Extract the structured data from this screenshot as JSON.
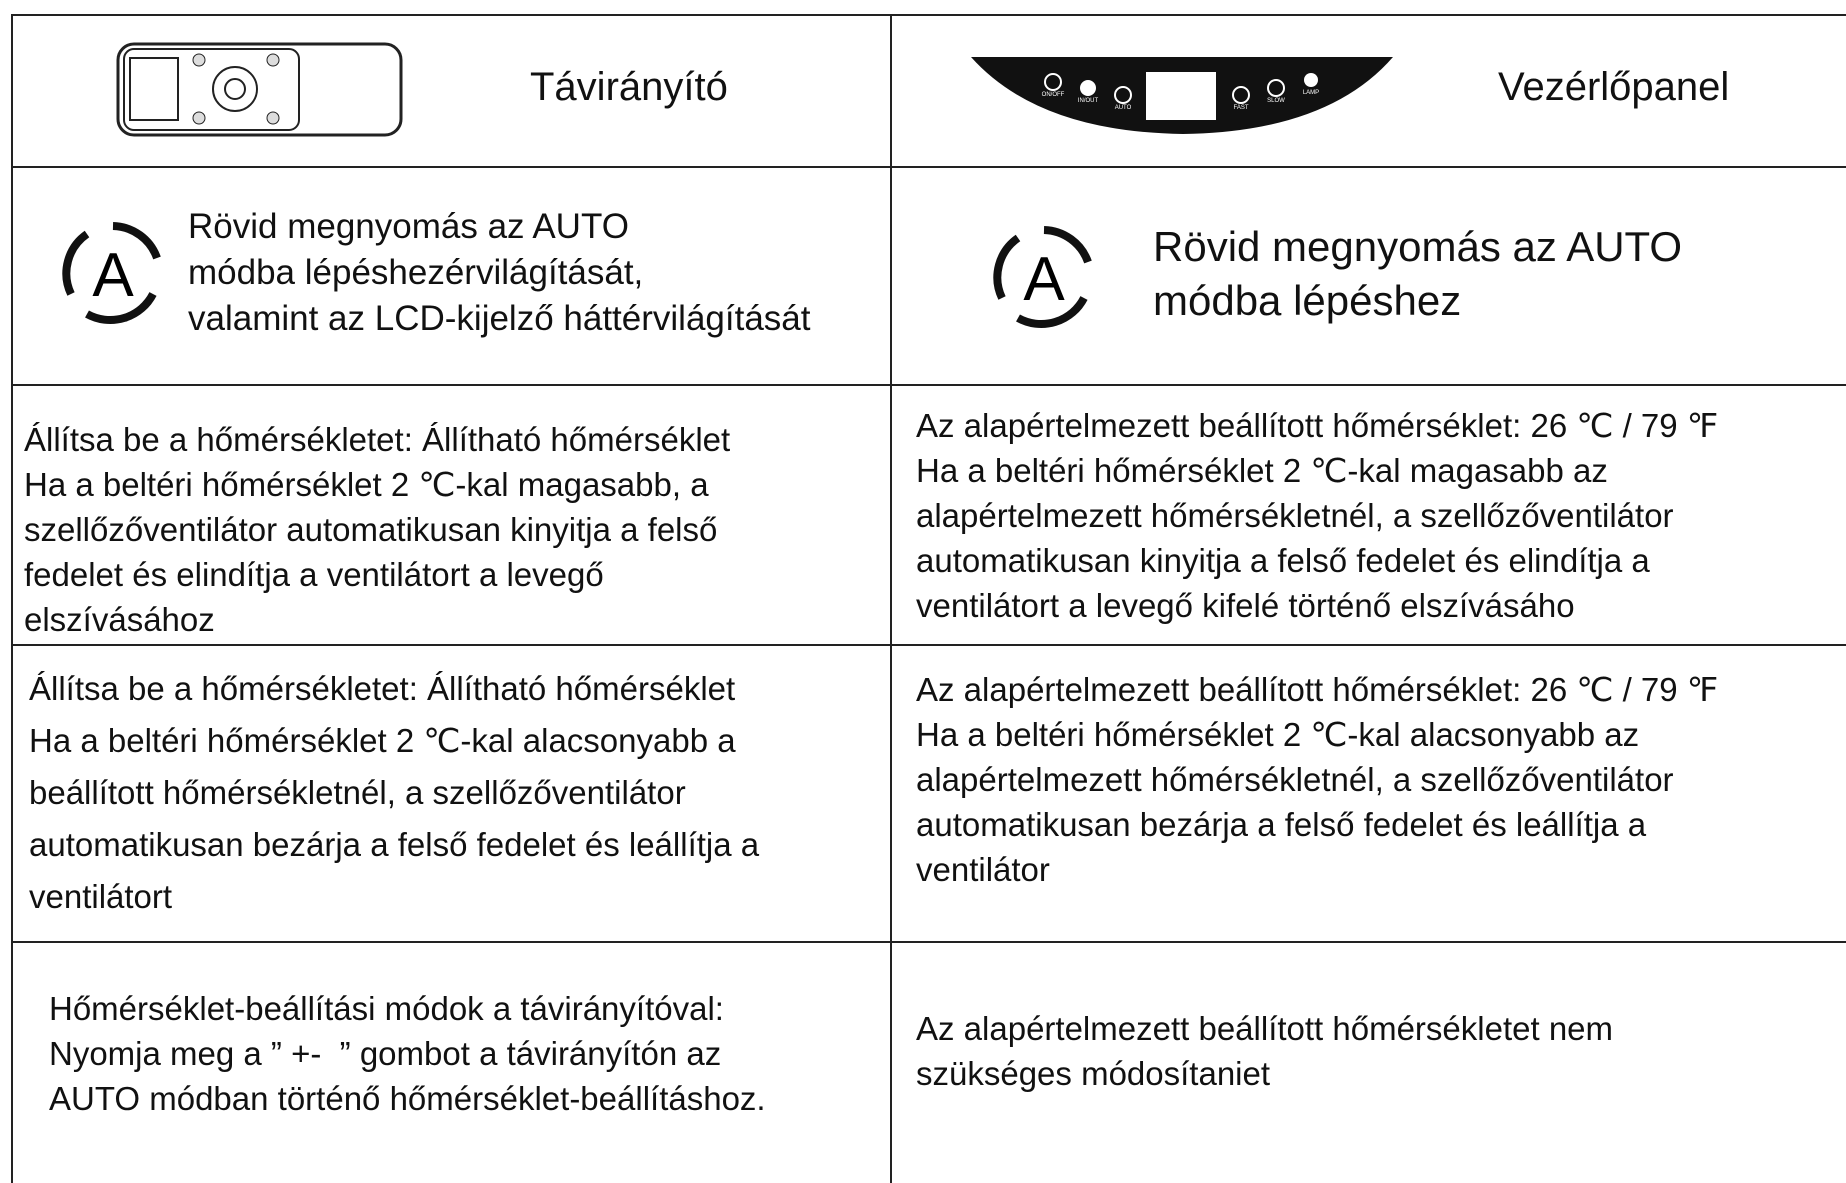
{
  "header": {
    "remote": "Távirányító",
    "panel": "Vezérlőpanel",
    "panel_buttons": [
      "ON/OFF",
      "IN/OUT",
      "AUTO",
      "FAST",
      "SLOW",
      "LAMP"
    ]
  },
  "rows": [
    {
      "remote": [
        "Rövid megnyomás az AUTO",
        "módba lépéshezérvilágítását,",
        "valamint az LCD-kijelző háttérvilágítását"
      ],
      "panel": [
        "Rövid megnyomás az AUTO",
        "módba lépéshez"
      ]
    },
    {
      "remote": [
        "Állítsa be a hőmérsékletet: Állítható hőmérséklet",
        "Ha a beltéri hőmérséklet 2 ℃-kal magasabb, a",
        "szellőzőventilátor automatikusan kinyitja a felső",
        "fedelet és elindítja a ventilátort a levegő",
        "elszívásához"
      ],
      "panel": [
        "Az alapértelmezett beállított hőmérséklet: 26 ℃ / 79 ℉",
        "Ha a beltéri hőmérséklet 2 ℃-kal magasabb az",
        "alapértelmezett hőmérsékletnél, a szellőzőventilátor",
        "automatikusan kinyitja a felső fedelet és elindítja a",
        "ventilátort a levegő kifelé történő elszívásáho"
      ]
    },
    {
      "remote": [
        "Állítsa be a hőmérsékletet: Állítható hőmérséklet",
        "Ha a beltéri hőmérséklet 2 ℃-kal alacsonyabb a",
        "beállított hőmérsékletnél, a szellőzőventilátor",
        "automatikusan bezárja a felső fedelet és leállítja a",
        "ventilátort"
      ],
      "panel": [
        "Az alapértelmezett beállított hőmérséklet: 26 ℃ / 79 ℉",
        "Ha a beltéri hőmérséklet 2 ℃-kal alacsonyabb az",
        "alapértelmezett hőmérsékletnél, a szellőzőventilátor",
        "automatikusan bezárja a felső fedelet és leállítja a",
        "ventilátor"
      ]
    },
    {
      "remote": [
        "Hőmérséklet-beállítási módok a távirányítóval:",
        "Nyomja meg a ” +-  ” gombot a távirányítón az",
        "AUTO módban történő hőmérséklet-beállításhoz."
      ],
      "panel": [
        "Az alapértelmezett beállított hőmérsékletet nem",
        "szükséges módosítaniet"
      ]
    }
  ]
}
